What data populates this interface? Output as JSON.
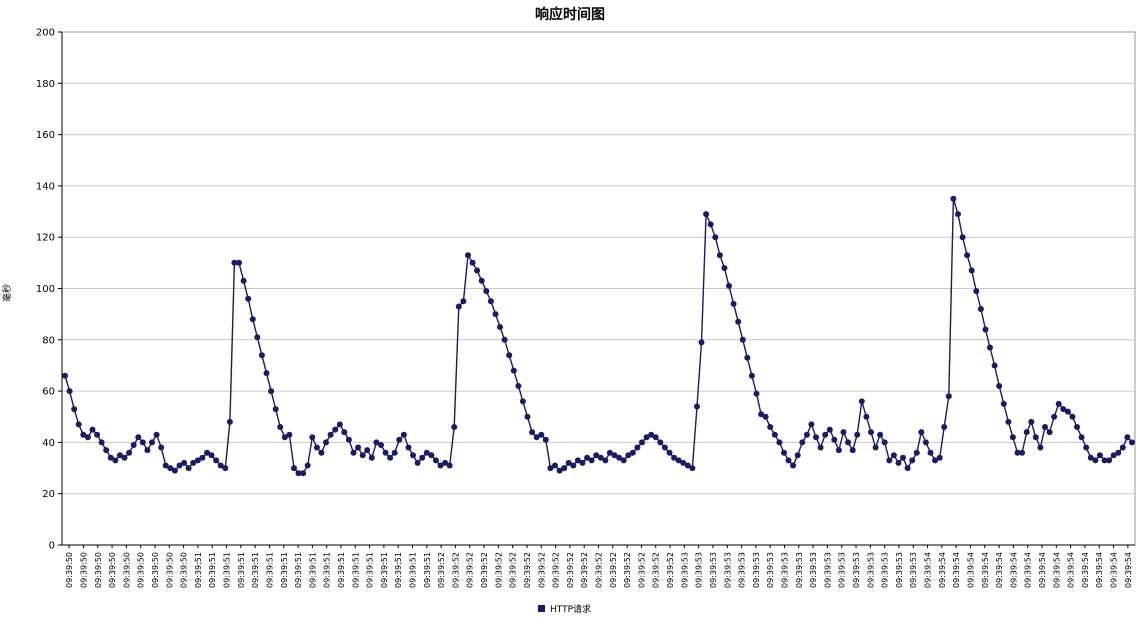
{
  "chart_data": {
    "type": "line",
    "title": "响应时间图",
    "xlabel": "",
    "ylabel": "毫秒",
    "ylim": [
      0,
      200
    ],
    "ytick_interval": 20,
    "grid": true,
    "grid_color": "#c9c9c9",
    "axis_color": "#000000",
    "plot_border_color": "#9a9a9a",
    "background_color": "#ffffff",
    "legend": {
      "position": "bottom-center"
    },
    "x_tick_labels": [
      "09:39:50",
      "09:39:50",
      "09:39:50",
      "09:39:50",
      "09:39:50",
      "09:39:50",
      "09:39:50",
      "09:39:50",
      "09:39:50",
      "09:39:51",
      "09:39:51",
      "09:39:51",
      "09:39:51",
      "09:39:51",
      "09:39:51",
      "09:39:51",
      "09:39:51",
      "09:39:51",
      "09:39:51",
      "09:39:51",
      "09:39:51",
      "09:39:51",
      "09:39:51",
      "09:39:51",
      "09:39:51",
      "09:39:51",
      "09:39:52",
      "09:39:52",
      "09:39:52",
      "09:39:52",
      "09:39:52",
      "09:39:52",
      "09:39:52",
      "09:39:52",
      "09:39:52",
      "09:39:52",
      "09:39:52",
      "09:39:52",
      "09:39:52",
      "09:39:52",
      "09:39:52",
      "09:39:52",
      "09:39:52",
      "09:39:53",
      "09:39:53",
      "09:39:53",
      "09:39:53",
      "09:39:53",
      "09:39:53",
      "09:39:53",
      "09:39:53",
      "09:39:53",
      "09:39:53",
      "09:39:53",
      "09:39:53",
      "09:39:53",
      "09:39:53",
      "09:39:53",
      "09:39:53",
      "09:39:53",
      "09:39:54",
      "09:39:54",
      "09:39:54",
      "09:39:54",
      "09:39:54",
      "09:39:54",
      "09:39:54",
      "09:39:54",
      "09:39:54",
      "09:39:54",
      "09:39:54",
      "09:39:54",
      "09:39:54",
      "09:39:54",
      "09:39:54"
    ],
    "series": [
      {
        "name": "HTTP请求",
        "color": "#1b1b60",
        "marker": "circle",
        "values": [
          66,
          60,
          53,
          47,
          43,
          42,
          45,
          43,
          40,
          37,
          34,
          33,
          35,
          34,
          36,
          39,
          42,
          40,
          37,
          40,
          43,
          38,
          31,
          30,
          29,
          31,
          32,
          30,
          32,
          33,
          34,
          36,
          35,
          33,
          31,
          30,
          48,
          110,
          110,
          103,
          96,
          88,
          81,
          74,
          67,
          60,
          53,
          46,
          42,
          43,
          30,
          28,
          28,
          31,
          42,
          38,
          36,
          40,
          43,
          45,
          47,
          44,
          41,
          36,
          38,
          35,
          37,
          34,
          40,
          39,
          36,
          34,
          36,
          41,
          43,
          38,
          35,
          32,
          34,
          36,
          35,
          33,
          31,
          32,
          31,
          46,
          93,
          95,
          113,
          110,
          107,
          103,
          99,
          95,
          90,
          85,
          80,
          74,
          68,
          62,
          56,
          50,
          44,
          42,
          43,
          41,
          30,
          31,
          29,
          30,
          32,
          31,
          33,
          32,
          34,
          33,
          35,
          34,
          33,
          36,
          35,
          34,
          33,
          35,
          36,
          38,
          40,
          42,
          43,
          42,
          40,
          38,
          36,
          34,
          33,
          32,
          31,
          30,
          54,
          79,
          129,
          125,
          120,
          113,
          108,
          101,
          94,
          87,
          80,
          73,
          66,
          59,
          51,
          50,
          46,
          43,
          40,
          36,
          33,
          31,
          35,
          40,
          43,
          47,
          42,
          38,
          43,
          45,
          41,
          37,
          44,
          40,
          37,
          43,
          56,
          50,
          44,
          38,
          43,
          40,
          33,
          35,
          32,
          34,
          30,
          33,
          36,
          44,
          40,
          36,
          33,
          34,
          46,
          58,
          135,
          129,
          120,
          113,
          107,
          99,
          92,
          84,
          77,
          70,
          62,
          55,
          48,
          42,
          36,
          36,
          44,
          48,
          42,
          38,
          46,
          44,
          50,
          55,
          53,
          52,
          50,
          46,
          42,
          38,
          34,
          33,
          35,
          33,
          33,
          35,
          36,
          38,
          42,
          40
        ]
      }
    ]
  }
}
